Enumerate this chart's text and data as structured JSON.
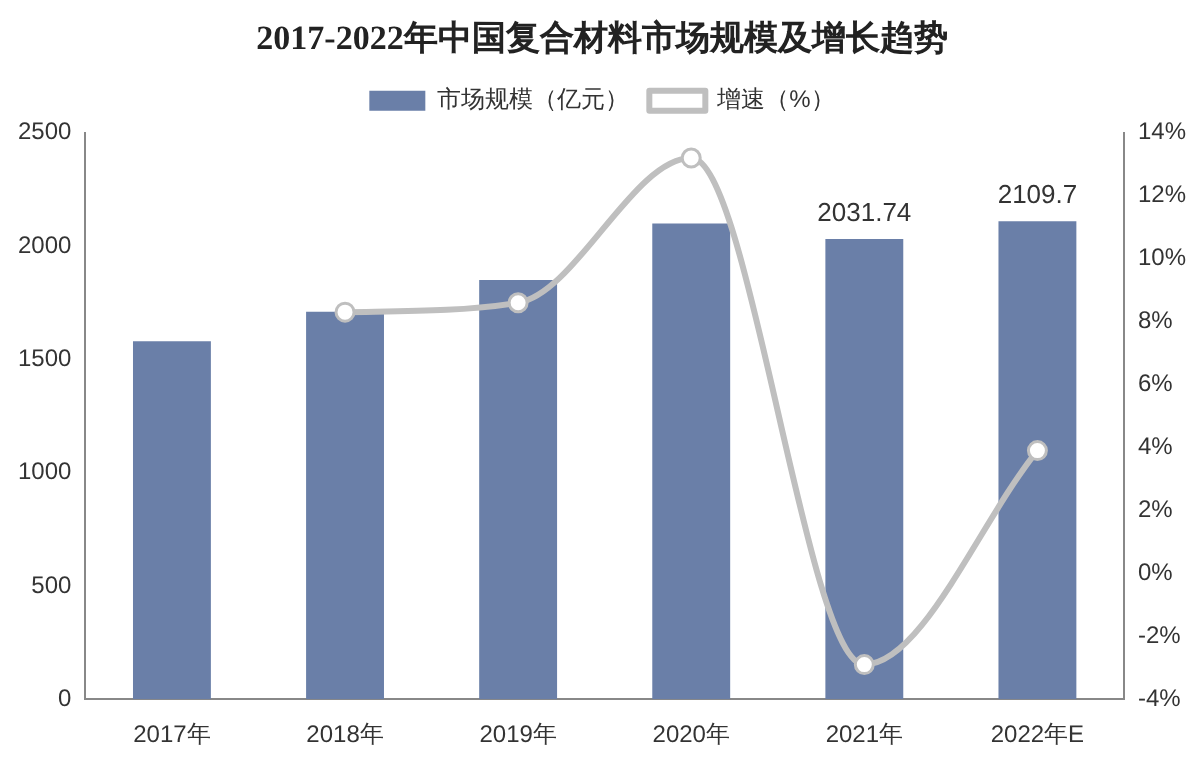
{
  "chart_data": {
    "type": "bar",
    "title": "2017-2022年中国复合材料市场规模及增长趋势",
    "categories": [
      "2017年",
      "2018年",
      "2019年",
      "2020年",
      "2021年",
      "2022年E"
    ],
    "series": [
      {
        "name": "市场规模（亿元）",
        "color": "#6a7fa8",
        "values": [
          1580,
          1710,
          1850,
          2100,
          2031.74,
          2109.7
        ],
        "value_labels": [
          null,
          null,
          null,
          null,
          "2031.74",
          "2109.7"
        ]
      },
      {
        "name": "增速（%）",
        "type": "line",
        "axis": "y2",
        "color": "#bfbfbf",
        "marker": "circle",
        "values": [
          null,
          8.3,
          8.6,
          13.2,
          -2.9,
          3.9
        ]
      }
    ],
    "ylim": [
      0,
      2500
    ],
    "yticks": [
      0,
      500,
      1000,
      1500,
      2000,
      2500
    ],
    "y2lim": [
      -4,
      14
    ],
    "y2ticks": [
      {
        "value": -4,
        "label": "-4%"
      },
      {
        "value": -2,
        "label": "-2%"
      },
      {
        "value": 0,
        "label": "0%"
      },
      {
        "value": 2,
        "label": "2%"
      },
      {
        "value": 4,
        "label": "4%"
      },
      {
        "value": 6,
        "label": "6%"
      },
      {
        "value": 8,
        "label": "8%"
      },
      {
        "value": 10,
        "label": "10%"
      },
      {
        "value": 12,
        "label": "12%"
      },
      {
        "value": 14,
        "label": "14%"
      }
    ],
    "legend": "top"
  }
}
